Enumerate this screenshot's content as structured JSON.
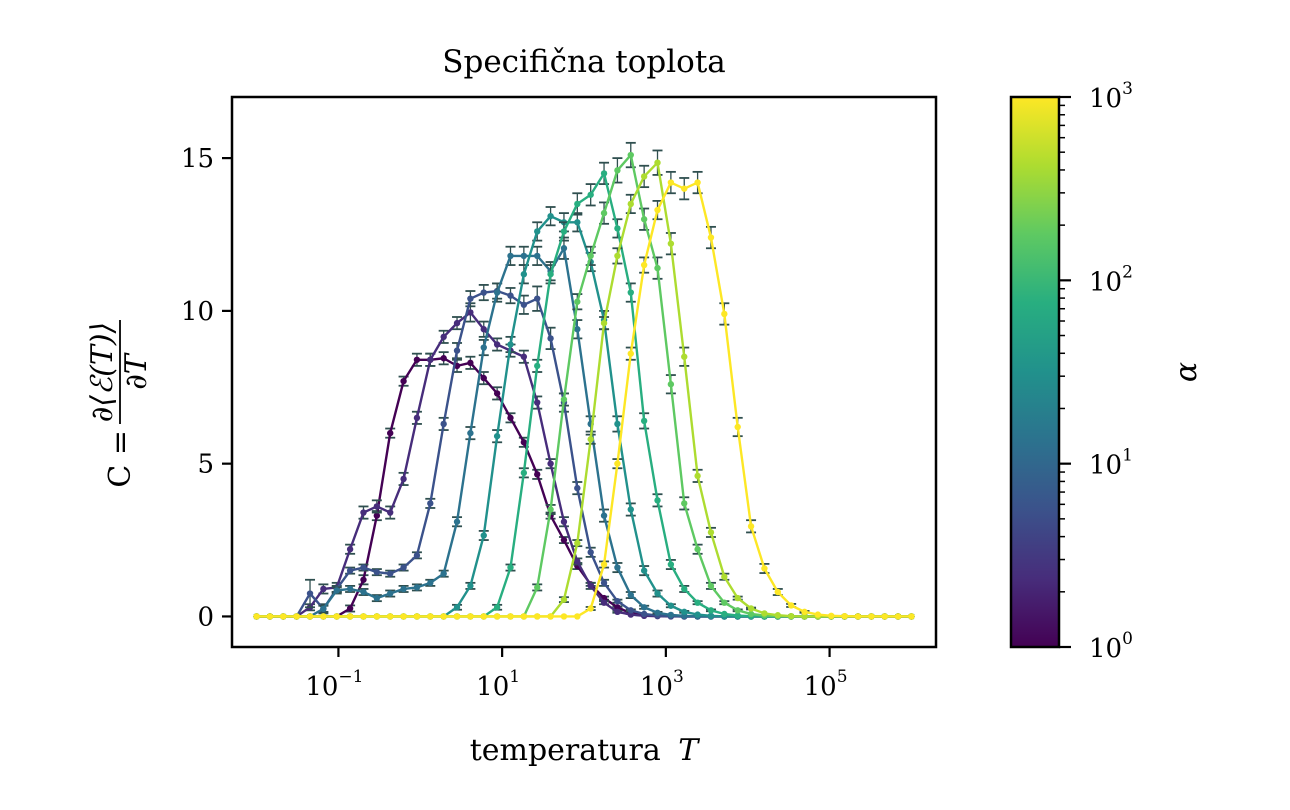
{
  "chart_data": {
    "type": "line",
    "title": "Specifična toplota",
    "xlabel": "temperatura",
    "xlabel_var": "T",
    "ylabel": "C = ∂⟨ℰ(T)⟩ / ∂T",
    "ylabel_parts": {
      "lhs": "C =",
      "numerator": "∂⟨ℰ(T)⟩",
      "denominator": "∂T"
    },
    "xscale": "log",
    "xlim_log10": [
      -2.3,
      6.3
    ],
    "ylim": [
      -1,
      17
    ],
    "x_ticks": [
      {
        "base": "10",
        "exp": "−1",
        "log10": -1
      },
      {
        "base": "10",
        "exp": "1",
        "log10": 1
      },
      {
        "base": "10",
        "exp": "3",
        "log10": 3
      },
      {
        "base": "10",
        "exp": "5",
        "log10": 5
      }
    ],
    "y_ticks": [
      0,
      5,
      10,
      15
    ],
    "x_log10_range": [
      -2,
      6
    ],
    "n_points": 50,
    "errorbar_color": "#2f4f4f",
    "grid": false,
    "colorbar": {
      "label": "α",
      "cmap": "viridis",
      "scale": "log",
      "range": [
        1,
        1000
      ],
      "ticks": [
        {
          "base": "10",
          "exp": "0",
          "log10": 0
        },
        {
          "base": "10",
          "exp": "1",
          "log10": 1
        },
        {
          "base": "10",
          "exp": "2",
          "log10": 2
        },
        {
          "base": "10",
          "exp": "3",
          "log10": 3
        }
      ],
      "stops": [
        "#440154",
        "#472d7b",
        "#3b528b",
        "#2c728e",
        "#21918c",
        "#28ae80",
        "#5ec962",
        "#addc30",
        "#fde725"
      ]
    },
    "series": [
      {
        "name": "α=1",
        "alpha": 1,
        "color": "#440154",
        "values": [
          0,
          0,
          0,
          0,
          0,
          0,
          0,
          0.26,
          1.2,
          3.3,
          6.0,
          7.7,
          8.4,
          8.4,
          8.45,
          8.2,
          8.3,
          7.8,
          7.3,
          6.5,
          5.7,
          4.65,
          3.3,
          2.5,
          1.65,
          1.05,
          0.6,
          0.3,
          0.1,
          0.05,
          0.02,
          0.01,
          0,
          0,
          0,
          0,
          0,
          0,
          0,
          0,
          0,
          0,
          0,
          0,
          0,
          0,
          0,
          0,
          0,
          0
        ],
        "errors": [
          0,
          0,
          0,
          0,
          0,
          0,
          0,
          0.1,
          0.15,
          0.15,
          0.15,
          0.15,
          0.2,
          0.2,
          0.2,
          0.2,
          0.2,
          0.2,
          0.2,
          0.15,
          0.15,
          0.15,
          0.1,
          0.1,
          0.1,
          0.05,
          0.05,
          0.03,
          0.02,
          0,
          0,
          0,
          0,
          0,
          0,
          0,
          0,
          0,
          0,
          0,
          0,
          0,
          0,
          0,
          0,
          0,
          0,
          0,
          0,
          0
        ]
      },
      {
        "name": "α=2.37",
        "alpha": 2.37,
        "color": "#472d7b",
        "values": [
          0,
          0,
          0,
          0,
          0.3,
          0.9,
          0.95,
          2.2,
          3.4,
          3.6,
          3.4,
          4.5,
          6.5,
          8.4,
          9.15,
          9.6,
          9.95,
          9.4,
          8.9,
          8.7,
          8.5,
          7.0,
          5.0,
          3.1,
          1.8,
          1.0,
          0.45,
          0.15,
          0.06,
          0.02,
          0.01,
          0,
          0,
          0,
          0,
          0,
          0,
          0,
          0,
          0,
          0,
          0,
          0,
          0,
          0,
          0,
          0,
          0,
          0,
          0
        ],
        "errors": [
          0,
          0,
          0,
          0,
          0.1,
          0.15,
          0.15,
          0.15,
          0.2,
          0.2,
          0.2,
          0.2,
          0.2,
          0.2,
          0.2,
          0.2,
          0.3,
          0.25,
          0.2,
          0.2,
          0.2,
          0.2,
          0.15,
          0.15,
          0.1,
          0.1,
          0.05,
          0.03,
          0,
          0,
          0,
          0,
          0,
          0,
          0,
          0,
          0,
          0,
          0,
          0,
          0,
          0,
          0,
          0,
          0,
          0,
          0,
          0,
          0,
          0
        ]
      },
      {
        "name": "α=5.62",
        "alpha": 5.62,
        "color": "#3b528b",
        "values": [
          0,
          0,
          0,
          0,
          0.75,
          0.25,
          0.9,
          1.5,
          1.6,
          1.45,
          1.4,
          1.6,
          2.0,
          3.7,
          6.3,
          8.7,
          10.4,
          10.6,
          10.65,
          10.5,
          10.2,
          10.4,
          9.1,
          7.0,
          4.2,
          2.1,
          1.1,
          0.5,
          0.2,
          0.08,
          0.03,
          0.01,
          0,
          0,
          0,
          0,
          0,
          0,
          0,
          0,
          0,
          0,
          0,
          0,
          0,
          0,
          0,
          0,
          0,
          0
        ],
        "errors": [
          0,
          0,
          0,
          0,
          0.45,
          0.15,
          0.1,
          0.1,
          0.1,
          0.1,
          0.1,
          0.1,
          0.1,
          0.15,
          0.2,
          0.25,
          0.25,
          0.25,
          0.25,
          0.25,
          0.3,
          0.4,
          0.35,
          0.3,
          0.2,
          0.15,
          0.1,
          0.05,
          0.03,
          0,
          0,
          0,
          0,
          0,
          0,
          0,
          0,
          0,
          0,
          0,
          0,
          0,
          0,
          0,
          0,
          0,
          0,
          0,
          0,
          0
        ]
      },
      {
        "name": "α=13.3",
        "alpha": 13.3,
        "color": "#2c728e",
        "values": [
          0,
          0,
          0,
          0,
          0,
          0.25,
          0.85,
          0.9,
          0.8,
          0.6,
          0.75,
          0.9,
          0.95,
          1.1,
          1.4,
          3.1,
          6.0,
          8.8,
          10.6,
          11.8,
          11.8,
          11.8,
          11.3,
          12.05,
          9.4,
          6.3,
          3.3,
          1.6,
          0.7,
          0.3,
          0.12,
          0.05,
          0.02,
          0,
          0,
          0,
          0,
          0,
          0,
          0,
          0,
          0,
          0,
          0,
          0,
          0,
          0,
          0,
          0,
          0
        ],
        "errors": [
          0,
          0,
          0,
          0,
          0,
          0.1,
          0.1,
          0.1,
          0.1,
          0.1,
          0.1,
          0.1,
          0.1,
          0.1,
          0.1,
          0.15,
          0.2,
          0.25,
          0.3,
          0.3,
          0.3,
          0.3,
          0.3,
          0.35,
          0.3,
          0.25,
          0.2,
          0.15,
          0.1,
          0.05,
          0.03,
          0,
          0,
          0,
          0,
          0,
          0,
          0,
          0,
          0,
          0,
          0,
          0,
          0,
          0,
          0,
          0,
          0,
          0,
          0
        ]
      },
      {
        "name": "α=31.6",
        "alpha": 31.6,
        "color": "#21918c",
        "values": [
          0,
          0,
          0,
          0,
          0,
          0,
          0,
          0,
          0,
          0,
          0,
          0,
          0,
          0,
          0,
          0.3,
          1.0,
          2.65,
          5.9,
          8.9,
          11.2,
          12.6,
          13.1,
          12.9,
          12.9,
          11.6,
          9.7,
          6.3,
          3.5,
          1.5,
          0.75,
          0.35,
          0.15,
          0.06,
          0.02,
          0,
          0,
          0,
          0,
          0,
          0,
          0,
          0,
          0,
          0,
          0,
          0,
          0,
          0,
          0
        ],
        "errors": [
          0,
          0,
          0,
          0,
          0,
          0,
          0,
          0,
          0,
          0,
          0,
          0,
          0,
          0,
          0,
          0.08,
          0.1,
          0.15,
          0.2,
          0.25,
          0.3,
          0.3,
          0.3,
          0.3,
          0.3,
          0.3,
          0.3,
          0.25,
          0.2,
          0.15,
          0.1,
          0.05,
          0.03,
          0,
          0,
          0,
          0,
          0,
          0,
          0,
          0,
          0,
          0,
          0,
          0,
          0,
          0,
          0,
          0,
          0
        ]
      },
      {
        "name": "α=75",
        "alpha": 75,
        "color": "#28ae80",
        "values": [
          0,
          0,
          0,
          0,
          0,
          0,
          0,
          0,
          0,
          0,
          0,
          0,
          0,
          0,
          0,
          0,
          0,
          0,
          0.3,
          1.6,
          4.7,
          8.2,
          11.2,
          12.6,
          13.5,
          13.8,
          14.5,
          12.7,
          10.6,
          6.4,
          3.8,
          1.7,
          0.9,
          0.45,
          0.2,
          0.08,
          0.03,
          0.01,
          0,
          0,
          0,
          0,
          0,
          0,
          0,
          0,
          0,
          0,
          0,
          0
        ],
        "errors": [
          0,
          0,
          0,
          0,
          0,
          0,
          0,
          0,
          0,
          0,
          0,
          0,
          0,
          0,
          0,
          0,
          0,
          0,
          0.08,
          0.1,
          0.15,
          0.2,
          0.3,
          0.3,
          0.35,
          0.35,
          0.35,
          0.3,
          0.3,
          0.25,
          0.2,
          0.15,
          0.1,
          0.05,
          0.03,
          0,
          0,
          0,
          0,
          0,
          0,
          0,
          0,
          0,
          0,
          0,
          0,
          0,
          0,
          0
        ]
      },
      {
        "name": "α=178",
        "alpha": 178,
        "color": "#5ec962",
        "values": [
          0,
          0,
          0,
          0,
          0,
          0,
          0,
          0,
          0,
          0,
          0,
          0,
          0,
          0,
          0,
          0,
          0,
          0,
          0,
          0,
          0,
          0.95,
          3.5,
          7.1,
          10.3,
          11.8,
          13.2,
          14.6,
          15.1,
          13.0,
          11.4,
          7.6,
          3.7,
          2.2,
          1.0,
          0.45,
          0.2,
          0.08,
          0.03,
          0.01,
          0,
          0,
          0,
          0,
          0,
          0,
          0,
          0,
          0,
          0
        ],
        "errors": [
          0,
          0,
          0,
          0,
          0,
          0,
          0,
          0,
          0,
          0,
          0,
          0,
          0,
          0,
          0,
          0,
          0,
          0,
          0,
          0,
          0,
          0.1,
          0.15,
          0.2,
          0.25,
          0.3,
          0.35,
          0.4,
          0.4,
          0.35,
          0.35,
          0.3,
          0.2,
          0.15,
          0.1,
          0.05,
          0.03,
          0,
          0,
          0,
          0,
          0,
          0,
          0,
          0,
          0,
          0,
          0,
          0,
          0
        ]
      },
      {
        "name": "α=422",
        "alpha": 422,
        "color": "#addc30",
        "values": [
          0,
          0,
          0,
          0,
          0,
          0,
          0,
          0,
          0,
          0,
          0,
          0,
          0,
          0,
          0,
          0,
          0,
          0,
          0,
          0,
          0,
          0,
          0,
          0.55,
          2.4,
          5.8,
          9.6,
          11.8,
          13.5,
          14.4,
          14.85,
          12.2,
          8.5,
          4.6,
          2.75,
          1.3,
          0.6,
          0.26,
          0.1,
          0.04,
          0.01,
          0,
          0,
          0,
          0,
          0,
          0,
          0,
          0,
          0
        ],
        "errors": [
          0,
          0,
          0,
          0,
          0,
          0,
          0,
          0,
          0,
          0,
          0,
          0,
          0,
          0,
          0,
          0,
          0,
          0,
          0,
          0,
          0,
          0,
          0,
          0.08,
          0.1,
          0.15,
          0.2,
          0.25,
          0.3,
          0.35,
          0.4,
          0.35,
          0.3,
          0.2,
          0.15,
          0.1,
          0.05,
          0.03,
          0,
          0,
          0,
          0,
          0,
          0,
          0,
          0,
          0,
          0,
          0,
          0
        ]
      },
      {
        "name": "α=1000",
        "alpha": 1000,
        "color": "#fde725",
        "values": [
          0,
          0,
          0,
          0,
          0,
          0,
          0,
          0,
          0,
          0,
          0,
          0,
          0,
          0,
          0,
          0,
          0,
          0,
          0,
          0,
          0,
          0,
          0,
          0,
          0,
          0.26,
          1.7,
          5.0,
          8.6,
          11.5,
          13.3,
          14.2,
          14.0,
          14.2,
          12.4,
          9.9,
          6.2,
          2.95,
          1.57,
          0.8,
          0.36,
          0.15,
          0.06,
          0.02,
          0.01,
          0,
          0,
          0,
          0,
          0
        ],
        "errors": [
          0,
          0,
          0,
          0,
          0,
          0,
          0,
          0,
          0,
          0,
          0,
          0,
          0,
          0,
          0,
          0,
          0,
          0,
          0,
          0,
          0,
          0,
          0,
          0,
          0,
          0.05,
          0.1,
          0.15,
          0.2,
          0.25,
          0.3,
          0.35,
          0.35,
          0.35,
          0.35,
          0.35,
          0.3,
          0.2,
          0.15,
          0.1,
          0.05,
          0.03,
          0,
          0,
          0,
          0,
          0,
          0,
          0,
          0
        ]
      }
    ]
  }
}
